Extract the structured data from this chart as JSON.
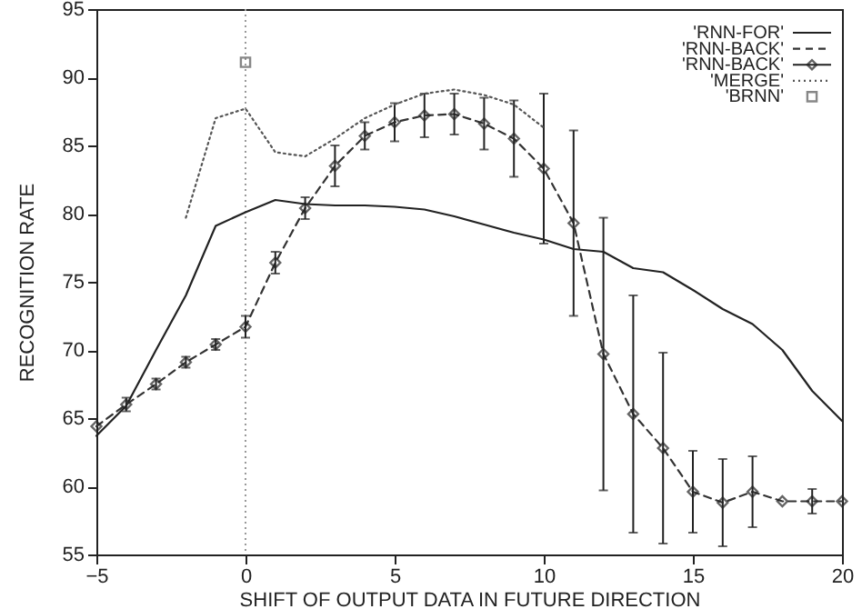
{
  "chart_data": {
    "type": "line",
    "xlabel": "SHIFT OF OUTPUT DATA IN FUTURE DIRECTION",
    "ylabel": "RECOGNITION RATE",
    "x": [
      -5,
      -4,
      -3,
      -2,
      -1,
      0,
      1,
      2,
      3,
      4,
      5,
      6,
      7,
      8,
      9,
      10,
      11,
      12,
      13,
      14,
      15,
      16,
      17,
      18,
      19,
      20
    ],
    "series": [
      {
        "name": "'RNN-FOR'",
        "color": "#222222",
        "line_style": "solid",
        "values": [
          63.7,
          65.9,
          70,
          74,
          79.1,
          80.1,
          81,
          80.7,
          80.6,
          80.6,
          80.5,
          80.3,
          79.8,
          79.2,
          78.6,
          78.1,
          77.4,
          77.2,
          76,
          75.7,
          74.4,
          73,
          71.9,
          70,
          67,
          64.8
        ]
      },
      {
        "name": "'RNN-BACK'",
        "color": "#333333",
        "line_style": "dashed",
        "values": [
          64.4,
          66,
          67.5,
          69.1,
          70.4,
          71.7,
          76.4,
          80.4,
          83.5,
          85.7,
          86.7,
          87.2,
          87.3,
          86.6,
          85.5,
          83.3,
          79.3,
          69.7,
          65.3,
          62.8,
          59.6,
          58.8,
          59.6,
          58.9,
          58.9,
          58.9
        ]
      },
      {
        "name": "'RNN-BACK'",
        "type": "scatter",
        "color": "#222222",
        "marker": "diamond",
        "values": [
          64.4,
          66,
          67.5,
          69.1,
          70.4,
          71.7,
          76.4,
          80.4,
          83.5,
          85.7,
          86.7,
          87.2,
          87.3,
          86.6,
          85.5,
          83.3,
          79.3,
          69.7,
          65.3,
          62.8,
          59.6,
          58.8,
          59.6,
          58.9,
          58.9,
          58.9
        ],
        "errors": [
          null,
          0.5,
          0.4,
          0.4,
          0.4,
          0.8,
          0.8,
          0.8,
          1.5,
          1,
          1.4,
          1.6,
          1.5,
          1.9,
          2.8,
          5.5,
          6.8,
          10,
          8.7,
          7,
          3,
          3.2,
          2.6,
          null,
          0.9,
          null
        ]
      },
      {
        "name": "'MERGE'",
        "color": "#555555",
        "line_style": "dotted",
        "values": [
          null,
          null,
          null,
          79.7,
          87,
          87.7,
          84.5,
          84.2,
          85.5,
          87,
          88,
          88.8,
          89.1,
          88.7,
          88,
          86.3,
          null,
          null,
          null,
          null,
          null,
          null,
          null,
          null,
          null,
          null
        ]
      },
      {
        "name": "'BRNN'",
        "type": "scatter",
        "color": "#555555",
        "marker": "square",
        "x": [
          0
        ],
        "values": [
          91.1
        ]
      }
    ],
    "xlim": [
      -5,
      20
    ],
    "xticks": [
      -5,
      0,
      5,
      10,
      15,
      20
    ],
    "ylim": [
      55,
      95
    ],
    "yticks": [
      55,
      60,
      65,
      70,
      75,
      80,
      85,
      90,
      95
    ],
    "ref_lines": [
      {
        "axis": "x",
        "value": 0,
        "color": "#999999",
        "line_style": "dotted"
      }
    ],
    "grid": false,
    "legend": "top right"
  }
}
